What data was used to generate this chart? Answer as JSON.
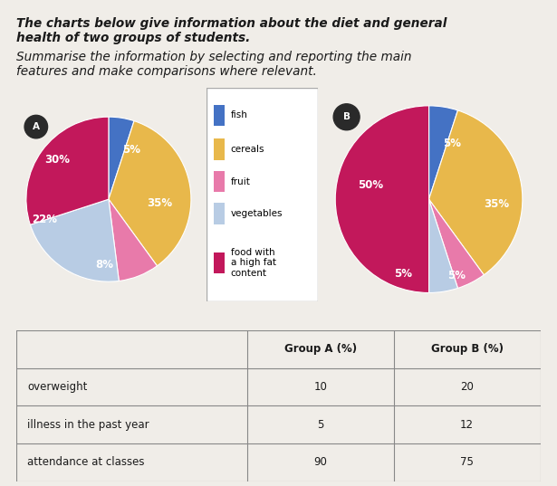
{
  "title_line1": "The charts below give information about the diet and general",
  "title_line2": "health of two groups of students.",
  "subtitle_line1": "Summarise the information by selecting and reporting the main",
  "subtitle_line2": "features and make comparisons where relevant.",
  "pie_colors": [
    "#4472c4",
    "#e8b84b",
    "#e87aaa",
    "#b8cce4",
    "#c2185b"
  ],
  "legend_labels": [
    "fish",
    "cereals",
    "fruit",
    "vegetables",
    "food with\na high fat\ncontent"
  ],
  "group_a_values": [
    5,
    35,
    8,
    22,
    30
  ],
  "group_b_values": [
    5,
    35,
    5,
    5,
    50
  ],
  "group_a_labels": [
    "5%",
    "35%",
    "8%",
    "22%",
    "30%"
  ],
  "group_b_labels": [
    "5%",
    "35%",
    "5%",
    "5%",
    "50%"
  ],
  "table_headers": [
    "",
    "Group A (%)",
    "Group B (%)"
  ],
  "table_rows": [
    [
      "overweight",
      "10",
      "20"
    ],
    [
      "illness in the past year",
      "5",
      "12"
    ],
    [
      "attendance at classes",
      "90",
      "75"
    ]
  ],
  "bg_color": "#f0ede8",
  "label_A": "A",
  "label_B": "B"
}
